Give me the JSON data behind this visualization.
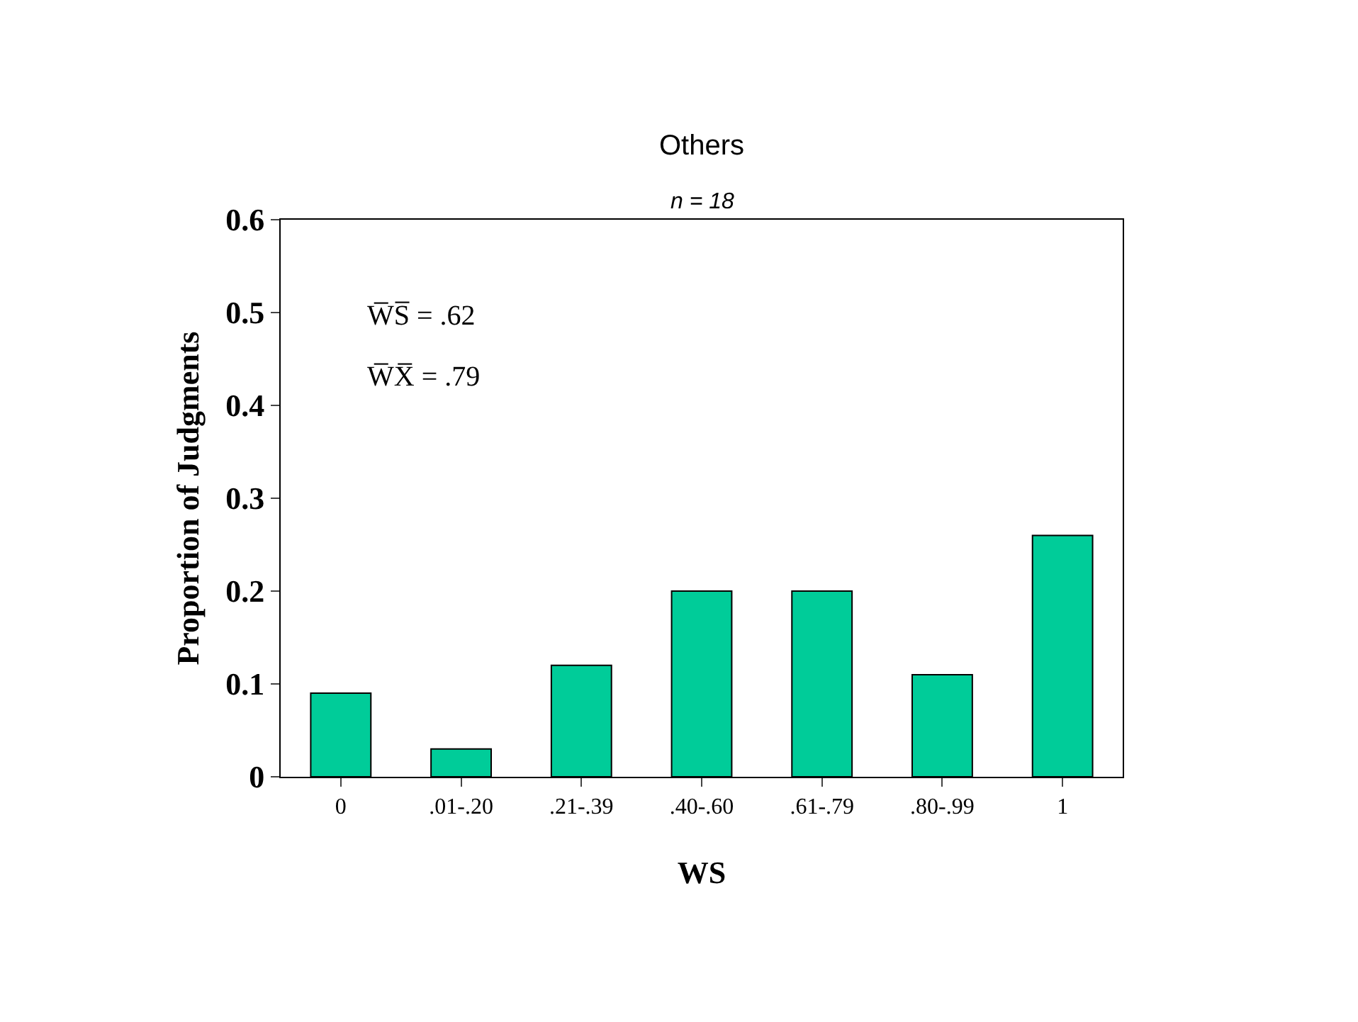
{
  "chart_data": {
    "type": "bar",
    "title": "Others",
    "subtitle": "n = 18",
    "xlabel": "WS",
    "ylabel": "Proportion of Judgments",
    "categories": [
      "0",
      ".01-.20",
      ".21-.39",
      ".40-.60",
      ".61-.79",
      ".80-.99",
      "1"
    ],
    "values": [
      0.09,
      0.03,
      0.12,
      0.2,
      0.2,
      0.11,
      0.26
    ],
    "color": "#00cc99",
    "ylim": [
      0,
      0.6
    ],
    "yticks": [
      {
        "value": 0,
        "label": "0"
      },
      0.1,
      0.2,
      0.3,
      0.4,
      0.5,
      0.6
    ],
    "annotations": [
      "W̅S̅ = .62",
      "W̅X̅ = .79"
    ],
    "grid": false,
    "legend": false
  }
}
